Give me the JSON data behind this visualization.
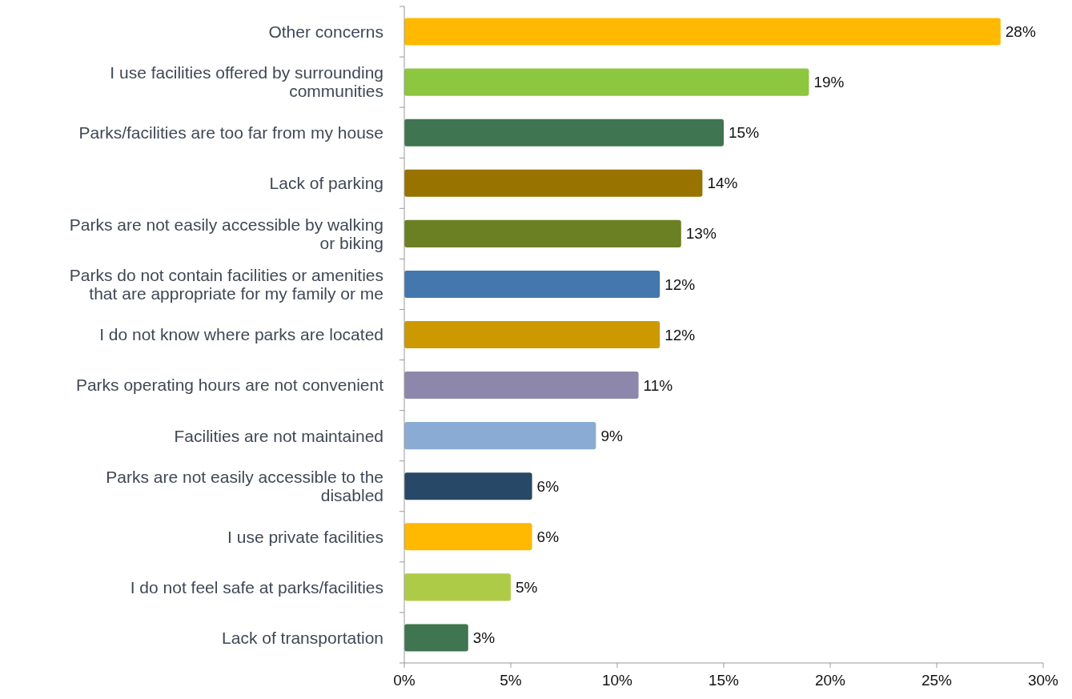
{
  "chart_data": {
    "type": "bar",
    "orientation": "horizontal",
    "categories": [
      "Other concerns",
      "I use facilities offered by surrounding communities",
      "Parks/facilities are too far from my house",
      "Lack of parking",
      "Parks are not easily accessible by walking or biking",
      "Parks do not contain facilities or amenities that are appropriate for my family or me",
      "I do not know where parks are located",
      "Parks operating hours are not convenient",
      "Facilities are not maintained",
      "Parks are not easily accessible to the disabled",
      "I use private facilities",
      "I do not feel safe at parks/facilities",
      "Lack of transportation"
    ],
    "values": [
      28,
      19,
      15,
      14,
      13,
      12,
      12,
      11,
      9,
      6,
      6,
      5,
      3
    ],
    "colors": [
      "#ffb900",
      "#8dc63f",
      "#3f7550",
      "#987300",
      "#6a8023",
      "#4377ae",
      "#cc9900",
      "#8c87ab",
      "#8aacd4",
      "#274866",
      "#ffb900",
      "#aecb48",
      "#3f7550"
    ],
    "value_labels": [
      "28%",
      "19%",
      "15%",
      "14%",
      "13%",
      "12%",
      "12%",
      "11%",
      "9%",
      "6%",
      "6%",
      "5%",
      "3%"
    ],
    "xlim": [
      0,
      30
    ],
    "xticks": [
      {
        "value": 0,
        "label": "0%"
      },
      {
        "value": 5,
        "label": "5%"
      },
      {
        "value": 10,
        "label": "10%"
      },
      {
        "value": 15,
        "label": "15%"
      },
      {
        "value": 20,
        "label": "20%"
      },
      {
        "value": 25,
        "label": "25%"
      },
      {
        "value": 30,
        "label": "30%"
      }
    ],
    "grid": false
  }
}
